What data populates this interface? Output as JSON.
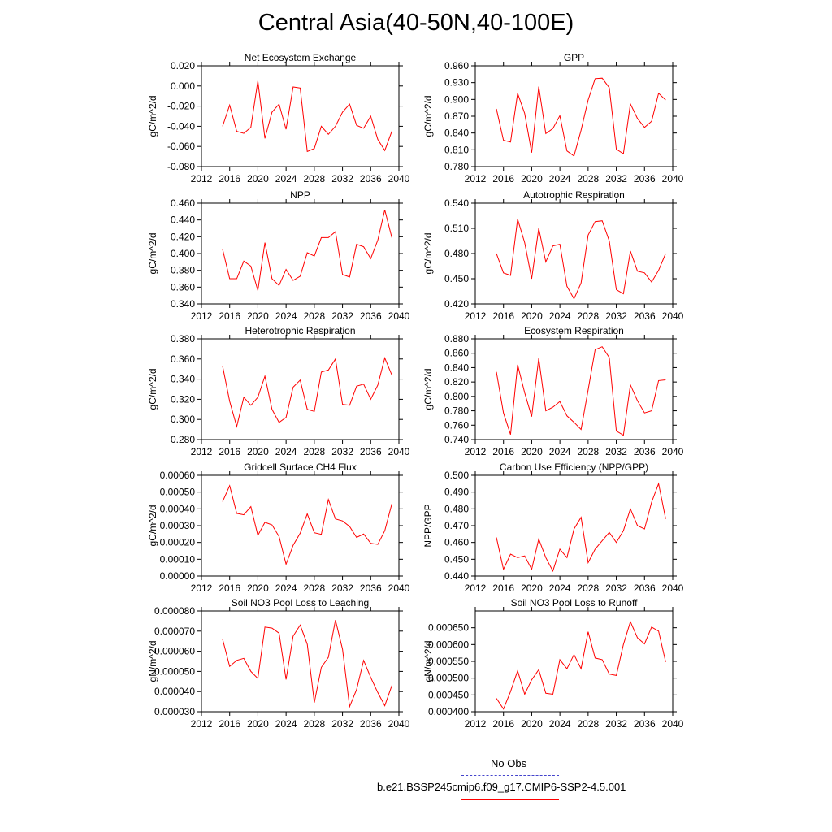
{
  "title": "Central Asia(40-50N,40-100E)",
  "legend": {
    "obs_label": "No Obs",
    "obs_color": "#4444cc",
    "model_label": "b.e21.BSSP245cmip6.f09_g17.CMIP6-SSP2-4.5.001",
    "model_color": "#ff0000"
  },
  "chart_data": [
    {
      "type": "line",
      "title": "Net Ecosystem Exchange",
      "ylabel": "gC/m^2/d",
      "xlim": [
        2012,
        2040
      ],
      "xticks": [
        "2012",
        "2016",
        "2020",
        "2024",
        "2028",
        "2032",
        "2036",
        "2040"
      ],
      "ylim": [
        -0.08,
        0.02
      ],
      "yticks": [
        "0.020",
        "0.000",
        "-0.020",
        "-0.040",
        "-0.060",
        "-0.080"
      ],
      "series_color": "#ff0000",
      "x": [
        2015,
        2016,
        2017,
        2018,
        2019,
        2020,
        2021,
        2022,
        2023,
        2024,
        2025,
        2026,
        2027,
        2028,
        2029,
        2030,
        2031,
        2032,
        2033,
        2034,
        2035,
        2036,
        2037,
        2038,
        2039
      ],
      "values": [
        -0.04,
        -0.019,
        -0.045,
        -0.047,
        -0.041,
        0.005,
        -0.052,
        -0.026,
        -0.018,
        -0.043,
        -0.001,
        -0.002,
        -0.065,
        -0.062,
        -0.04,
        -0.048,
        -0.04,
        -0.026,
        -0.018,
        -0.039,
        -0.042,
        -0.03,
        -0.053,
        -0.064,
        -0.045
      ]
    },
    {
      "type": "line",
      "title": "GPP",
      "ylabel": "gC/m^2/d",
      "xlim": [
        2012,
        2040
      ],
      "xticks": [
        "2012",
        "2016",
        "2020",
        "2024",
        "2028",
        "2032",
        "2036",
        "2040"
      ],
      "ylim": [
        0.78,
        0.96
      ],
      "yticks": [
        "0.960",
        "0.930",
        "0.900",
        "0.870",
        "0.840",
        "0.810",
        "0.780"
      ],
      "series_color": "#ff0000",
      "x": [
        2015,
        2016,
        2017,
        2018,
        2019,
        2020,
        2021,
        2022,
        2023,
        2024,
        2025,
        2026,
        2027,
        2028,
        2029,
        2030,
        2031,
        2032,
        2033,
        2034,
        2035,
        2036,
        2037,
        2038,
        2039
      ],
      "values": [
        0.883,
        0.827,
        0.824,
        0.911,
        0.875,
        0.805,
        0.923,
        0.839,
        0.848,
        0.871,
        0.808,
        0.799,
        0.845,
        0.899,
        0.937,
        0.938,
        0.921,
        0.811,
        0.803,
        0.892,
        0.866,
        0.85,
        0.861,
        0.911,
        0.899
      ]
    },
    {
      "type": "line",
      "title": "NPP",
      "ylabel": "gC/m^2/d",
      "xlim": [
        2012,
        2040
      ],
      "xticks": [
        "2012",
        "2016",
        "2020",
        "2024",
        "2028",
        "2032",
        "2036",
        "2040"
      ],
      "ylim": [
        0.34,
        0.46
      ],
      "yticks": [
        "0.460",
        "0.440",
        "0.420",
        "0.400",
        "0.380",
        "0.360",
        "0.340"
      ],
      "series_color": "#ff0000",
      "x": [
        2015,
        2016,
        2017,
        2018,
        2019,
        2020,
        2021,
        2022,
        2023,
        2024,
        2025,
        2026,
        2027,
        2028,
        2029,
        2030,
        2031,
        2032,
        2033,
        2034,
        2035,
        2036,
        2037,
        2038,
        2039
      ],
      "values": [
        0.405,
        0.37,
        0.37,
        0.391,
        0.385,
        0.356,
        0.413,
        0.37,
        0.362,
        0.381,
        0.368,
        0.373,
        0.401,
        0.397,
        0.419,
        0.419,
        0.426,
        0.375,
        0.372,
        0.411,
        0.408,
        0.394,
        0.416,
        0.452,
        0.419
      ]
    },
    {
      "type": "line",
      "title": "Autotrophic Respiration",
      "ylabel": "gC/m^2/d",
      "xlim": [
        2012,
        2040
      ],
      "xticks": [
        "2012",
        "2016",
        "2020",
        "2024",
        "2028",
        "2032",
        "2036",
        "2040"
      ],
      "ylim": [
        0.42,
        0.54
      ],
      "yticks": [
        "0.540",
        "0.510",
        "0.480",
        "0.450",
        "0.420"
      ],
      "series_color": "#ff0000",
      "x": [
        2015,
        2016,
        2017,
        2018,
        2019,
        2020,
        2021,
        2022,
        2023,
        2024,
        2025,
        2026,
        2027,
        2028,
        2029,
        2030,
        2031,
        2032,
        2033,
        2034,
        2035,
        2036,
        2037,
        2038,
        2039
      ],
      "values": [
        0.48,
        0.457,
        0.454,
        0.521,
        0.493,
        0.45,
        0.51,
        0.47,
        0.489,
        0.491,
        0.441,
        0.426,
        0.445,
        0.502,
        0.518,
        0.519,
        0.495,
        0.437,
        0.432,
        0.483,
        0.459,
        0.457,
        0.446,
        0.46,
        0.48
      ]
    },
    {
      "type": "line",
      "title": "Heterotrophic Respiration",
      "ylabel": "gC/m^2/d",
      "xlim": [
        2012,
        2040
      ],
      "xticks": [
        "2012",
        "2016",
        "2020",
        "2024",
        "2028",
        "2032",
        "2036",
        "2040"
      ],
      "ylim": [
        0.28,
        0.38
      ],
      "yticks": [
        "0.380",
        "0.360",
        "0.340",
        "0.320",
        "0.300",
        "0.280"
      ],
      "series_color": "#ff0000",
      "x": [
        2015,
        2016,
        2017,
        2018,
        2019,
        2020,
        2021,
        2022,
        2023,
        2024,
        2025,
        2026,
        2027,
        2028,
        2029,
        2030,
        2031,
        2032,
        2033,
        2034,
        2035,
        2036,
        2037,
        2038,
        2039
      ],
      "values": [
        0.353,
        0.318,
        0.293,
        0.322,
        0.314,
        0.322,
        0.343,
        0.31,
        0.297,
        0.302,
        0.332,
        0.339,
        0.31,
        0.308,
        0.347,
        0.349,
        0.36,
        0.315,
        0.314,
        0.333,
        0.335,
        0.32,
        0.334,
        0.361,
        0.344
      ]
    },
    {
      "type": "line",
      "title": "Ecosystem Respiration",
      "ylabel": "gC/m^2/d",
      "xlim": [
        2012,
        2040
      ],
      "xticks": [
        "2012",
        "2016",
        "2020",
        "2024",
        "2028",
        "2032",
        "2036",
        "2040"
      ],
      "ylim": [
        0.74,
        0.88
      ],
      "yticks": [
        "0.880",
        "0.860",
        "0.840",
        "0.820",
        "0.800",
        "0.780",
        "0.760",
        "0.740"
      ],
      "series_color": "#ff0000",
      "x": [
        2015,
        2016,
        2017,
        2018,
        2019,
        2020,
        2021,
        2022,
        2023,
        2024,
        2025,
        2026,
        2027,
        2028,
        2029,
        2030,
        2031,
        2032,
        2033,
        2034,
        2035,
        2036,
        2037,
        2038,
        2039
      ],
      "values": [
        0.834,
        0.777,
        0.747,
        0.844,
        0.805,
        0.772,
        0.853,
        0.78,
        0.785,
        0.793,
        0.773,
        0.764,
        0.754,
        0.809,
        0.865,
        0.869,
        0.854,
        0.752,
        0.746,
        0.816,
        0.794,
        0.777,
        0.78,
        0.822,
        0.823
      ]
    },
    {
      "type": "line",
      "title": "Gridcell Surface CH4 Flux",
      "ylabel": "gC/m^2/d",
      "xlim": [
        2012,
        2040
      ],
      "xticks": [
        "2012",
        "2016",
        "2020",
        "2024",
        "2028",
        "2032",
        "2036",
        "2040"
      ],
      "ylim": [
        0,
        0.0006
      ],
      "yticks": [
        "0.00060",
        "0.00050",
        "0.00040",
        "0.00030",
        "0.00020",
        "0.00010",
        "0.00000"
      ],
      "series_color": "#ff0000",
      "x": [
        2015,
        2016,
        2017,
        2018,
        2019,
        2020,
        2021,
        2022,
        2023,
        2024,
        2025,
        2026,
        2027,
        2028,
        2029,
        2030,
        2031,
        2032,
        2033,
        2034,
        2035,
        2036,
        2037,
        2038,
        2039
      ],
      "values": [
        0.000443,
        0.000538,
        0.000373,
        0.000365,
        0.000413,
        0.000242,
        0.00032,
        0.000305,
        0.000235,
        7e-05,
        0.000183,
        0.000255,
        0.00037,
        0.000258,
        0.000248,
        0.000456,
        0.00034,
        0.000328,
        0.000295,
        0.00023,
        0.00025,
        0.000195,
        0.000188,
        0.00027,
        0.00043
      ]
    },
    {
      "type": "line",
      "title": "Carbon Use Efficiency (NPP/GPP)",
      "ylabel": "NPP/GPP",
      "xlim": [
        2012,
        2040
      ],
      "xticks": [
        "2012",
        "2016",
        "2020",
        "2024",
        "2028",
        "2032",
        "2036",
        "2040"
      ],
      "ylim": [
        0.44,
        0.5
      ],
      "yticks": [
        "0.500",
        "0.490",
        "0.480",
        "0.470",
        "0.460",
        "0.450",
        "0.440"
      ],
      "series_color": "#ff0000",
      "x": [
        2015,
        2016,
        2017,
        2018,
        2019,
        2020,
        2021,
        2022,
        2023,
        2024,
        2025,
        2026,
        2027,
        2028,
        2029,
        2030,
        2031,
        2032,
        2033,
        2034,
        2035,
        2036,
        2037,
        2038,
        2039
      ],
      "values": [
        0.463,
        0.444,
        0.453,
        0.451,
        0.452,
        0.444,
        0.462,
        0.451,
        0.443,
        0.456,
        0.451,
        0.468,
        0.475,
        0.448,
        0.456,
        0.461,
        0.466,
        0.46,
        0.467,
        0.48,
        0.47,
        0.468,
        0.484,
        0.495,
        0.474
      ]
    },
    {
      "type": "line",
      "title": "Soil NO3 Pool Loss to Leaching",
      "ylabel": "gN/m^2/d",
      "xlim": [
        2012,
        2040
      ],
      "xticks": [
        "2012",
        "2016",
        "2020",
        "2024",
        "2028",
        "2032",
        "2036",
        "2040"
      ],
      "ylim": [
        3e-05,
        8e-05
      ],
      "yticks": [
        "0.000080",
        "0.000070",
        "0.000060",
        "0.000050",
        "0.000040",
        "0.000030"
      ],
      "series_color": "#ff0000",
      "x": [
        2015,
        2016,
        2017,
        2018,
        2019,
        2020,
        2021,
        2022,
        2023,
        2024,
        2025,
        2026,
        2027,
        2028,
        2029,
        2030,
        2031,
        2032,
        2033,
        2034,
        2035,
        2036,
        2037,
        2038,
        2039
      ],
      "values": [
        6.6e-05,
        5.25e-05,
        5.55e-05,
        5.65e-05,
        5e-05,
        4.65e-05,
        7.2e-05,
        7.15e-05,
        6.9e-05,
        4.6e-05,
        6.75e-05,
        7.3e-05,
        6.35e-05,
        3.45e-05,
        5.2e-05,
        5.7e-05,
        7.55e-05,
        6.1e-05,
        3.25e-05,
        4.1e-05,
        5.55e-05,
        4.7e-05,
        3.95e-05,
        3.3e-05,
        4.3e-05
      ]
    },
    {
      "type": "line",
      "title": "Soil NO3 Pool Loss to Runoff",
      "ylabel": "gN/m^2/d",
      "xlim": [
        2012,
        2040
      ],
      "xticks": [
        "2012",
        "2016",
        "2020",
        "2024",
        "2028",
        "2032",
        "2036",
        "2040"
      ],
      "ylim": [
        0.0004,
        0.0007
      ],
      "yticks": [
        "0.000650",
        "0.000600",
        "0.000550",
        "0.000500",
        "0.000450",
        "0.000400"
      ],
      "ytick_values": [
        0.00065,
        0.0006,
        0.00055,
        0.0005,
        0.00045,
        0.0004
      ],
      "series_color": "#ff0000",
      "x": [
        2015,
        2016,
        2017,
        2018,
        2019,
        2020,
        2021,
        2022,
        2023,
        2024,
        2025,
        2026,
        2027,
        2028,
        2029,
        2030,
        2031,
        2032,
        2033,
        2034,
        2035,
        2036,
        2037,
        2038,
        2039
      ],
      "values": [
        0.00044,
        0.000408,
        0.00046,
        0.000522,
        0.000452,
        0.000495,
        0.000525,
        0.000455,
        0.000452,
        0.000555,
        0.000528,
        0.00057,
        0.000528,
        0.000638,
        0.00056,
        0.000555,
        0.000512,
        0.000508,
        0.0006,
        0.000668,
        0.00062,
        0.000602,
        0.000652,
        0.00064,
        0.000548
      ]
    }
  ]
}
